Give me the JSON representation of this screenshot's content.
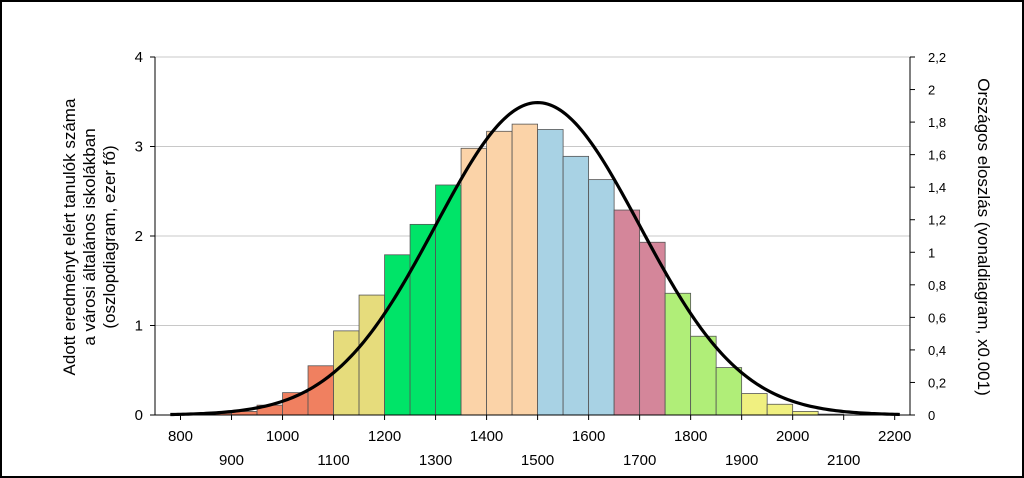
{
  "chart_data": {
    "type": "bar",
    "y_axis_left": {
      "label_lines": [
        "Adott eredményt elért tanulók száma",
        "a városi általános iskolákban",
        "(oszlopdiagram, ezer fő)"
      ],
      "ylim": [
        0,
        4
      ],
      "ticks": [
        "0",
        "1",
        "2",
        "3",
        "4"
      ]
    },
    "y_axis_right": {
      "label": "Országos eloszlás (vonaldiagram, x0.001)",
      "ylim": [
        0,
        2.2
      ],
      "ticks": [
        "0",
        "0,2",
        "0,4",
        "0,6",
        "0,8",
        "1",
        "1,2",
        "1,4",
        "1,6",
        "1,8",
        "2",
        "2,2"
      ]
    },
    "x_axis": {
      "xlim": [
        750,
        2230
      ],
      "ticks_upper": [
        "800",
        "1000",
        "1200",
        "1400",
        "1600",
        "1800",
        "2000",
        "2200"
      ],
      "ticks_lower": [
        "900",
        "1100",
        "1300",
        "1500",
        "1700",
        "1900",
        "2100"
      ]
    },
    "bar_width": 50,
    "bars": [
      {
        "x": 775,
        "value": 0.0,
        "color": "#f08060"
      },
      {
        "x": 825,
        "value": 0.01,
        "color": "#f08060"
      },
      {
        "x": 875,
        "value": 0.02,
        "color": "#f08060"
      },
      {
        "x": 925,
        "value": 0.04,
        "color": "#f08060"
      },
      {
        "x": 975,
        "value": 0.11,
        "color": "#f08060"
      },
      {
        "x": 1025,
        "value": 0.25,
        "color": "#f08060"
      },
      {
        "x": 1075,
        "value": 0.55,
        "color": "#f08060"
      },
      {
        "x": 1125,
        "value": 0.94,
        "color": "#e6dc7c"
      },
      {
        "x": 1175,
        "value": 1.34,
        "color": "#e6dc7c"
      },
      {
        "x": 1225,
        "value": 1.79,
        "color": "#00e468"
      },
      {
        "x": 1275,
        "value": 2.13,
        "color": "#00e468"
      },
      {
        "x": 1325,
        "value": 2.57,
        "color": "#00e468"
      },
      {
        "x": 1375,
        "value": 2.98,
        "color": "#fbd3a8"
      },
      {
        "x": 1425,
        "value": 3.17,
        "color": "#fbd3a8"
      },
      {
        "x": 1475,
        "value": 3.25,
        "color": "#fbd3a8"
      },
      {
        "x": 1525,
        "value": 3.19,
        "color": "#a8d2e4"
      },
      {
        "x": 1575,
        "value": 2.89,
        "color": "#a8d2e4"
      },
      {
        "x": 1625,
        "value": 2.63,
        "color": "#a8d2e4"
      },
      {
        "x": 1675,
        "value": 2.29,
        "color": "#d4869a"
      },
      {
        "x": 1725,
        "value": 1.93,
        "color": "#d4869a"
      },
      {
        "x": 1775,
        "value": 1.36,
        "color": "#b0ee78"
      },
      {
        "x": 1825,
        "value": 0.88,
        "color": "#b0ee78"
      },
      {
        "x": 1875,
        "value": 0.53,
        "color": "#b0ee78"
      },
      {
        "x": 1925,
        "value": 0.24,
        "color": "#f0f080"
      },
      {
        "x": 1975,
        "value": 0.12,
        "color": "#f0f080"
      },
      {
        "x": 2025,
        "value": 0.04,
        "color": "#f0f080"
      },
      {
        "x": 2075,
        "value": 0.01,
        "color": "#f0f080"
      },
      {
        "x": 2125,
        "value": 0.0,
        "color": "#f0f080"
      }
    ],
    "distribution_curve": {
      "type": "line",
      "mean": 1500,
      "sd": 200,
      "peak_right_axis": 1.92,
      "color": "#000000"
    },
    "grid": true
  }
}
